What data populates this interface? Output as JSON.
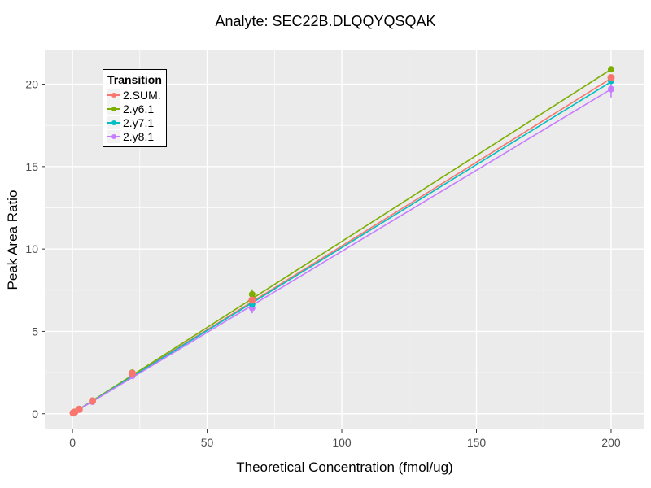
{
  "title": "Analyte: SEC22B.DLQQYQSQAK",
  "colors": {
    "background": "#FFFFFF",
    "panel_bg": "#EBEBEB",
    "grid_major": "#FFFFFF",
    "grid_minor": "#FFFFFF",
    "tick_label": "#4D4D4D",
    "tick_mark": "#333333",
    "title_text": "#000000",
    "legend_border": "#000000",
    "legend_key_bg": "#F2F2F2"
  },
  "x_axis": {
    "label": "Theoretical Concentration (fmol/ug)",
    "ticks": [
      0,
      50,
      100,
      150,
      200
    ],
    "minor_ticks": [
      25,
      75,
      125,
      175
    ],
    "range": [
      -10.3,
      212.4
    ]
  },
  "y_axis": {
    "label": "Peak Area Ratio",
    "ticks": [
      0,
      5,
      10,
      15,
      20
    ],
    "minor_ticks": [
      2.5,
      7.5,
      12.5,
      17.5
    ],
    "range": [
      -0.95,
      22.1
    ]
  },
  "legend": {
    "title": "Transition",
    "items": [
      {
        "label": "2.SUM.",
        "color": "#F8766D"
      },
      {
        "label": "2.y6.1",
        "color": "#7CAE00"
      },
      {
        "label": "2.y7.1",
        "color": "#00BFC4"
      },
      {
        "label": "2.y8.1",
        "color": "#C77CFF"
      }
    ]
  },
  "chart_data": {
    "type": "scatter",
    "title": "Analyte: SEC22B.DLQQYQSQAK",
    "xlabel": "Theoretical Concentration (fmol/ug)",
    "ylabel": "Peak Area Ratio",
    "xlim": [
      -10.3,
      212.4
    ],
    "ylim": [
      -0.95,
      22.1
    ],
    "grid": true,
    "legend_position": "top-left-inside",
    "x": [
      0.27,
      0.82,
      2.47,
      7.41,
      22.2,
      66.7,
      200
    ],
    "series": [
      {
        "name": "2.SUM.",
        "color": "#F8766D",
        "point_radius": 4.5,
        "y": [
          0.05,
          0.1,
          0.27,
          0.78,
          2.45,
          6.9,
          20.4
        ],
        "fit_line": {
          "x": [
            0,
            200
          ],
          "y": [
            0.02,
            20.35
          ]
        },
        "error_bars": []
      },
      {
        "name": "2.y6.1",
        "color": "#7CAE00",
        "point_radius": 4,
        "y": [
          0.05,
          0.11,
          0.28,
          0.8,
          2.5,
          7.25,
          20.9
        ],
        "fit_line": {
          "x": [
            0,
            200
          ],
          "y": [
            0.02,
            20.9
          ]
        },
        "error_bars": [
          {
            "x": 66.7,
            "low": 6.95,
            "high": 7.55
          }
        ]
      },
      {
        "name": "2.y7.1",
        "color": "#00BFC4",
        "point_radius": 4,
        "y": [
          0.04,
          0.09,
          0.26,
          0.76,
          2.4,
          6.65,
          20.2
        ],
        "fit_line": {
          "x": [
            0,
            200
          ],
          "y": [
            0.02,
            20.15
          ]
        },
        "error_bars": []
      },
      {
        "name": "2.y8.1",
        "color": "#C77CFF",
        "point_radius": 4,
        "y": [
          0.04,
          0.08,
          0.25,
          0.73,
          2.3,
          6.42,
          19.7
        ],
        "fit_line": {
          "x": [
            0,
            200
          ],
          "y": [
            0.02,
            19.7
          ]
        },
        "error_bars": [
          {
            "x": 66.7,
            "low": 6.1,
            "high": 6.7
          },
          {
            "x": 200,
            "low": 19.2,
            "high": 20.1
          }
        ]
      }
    ]
  }
}
